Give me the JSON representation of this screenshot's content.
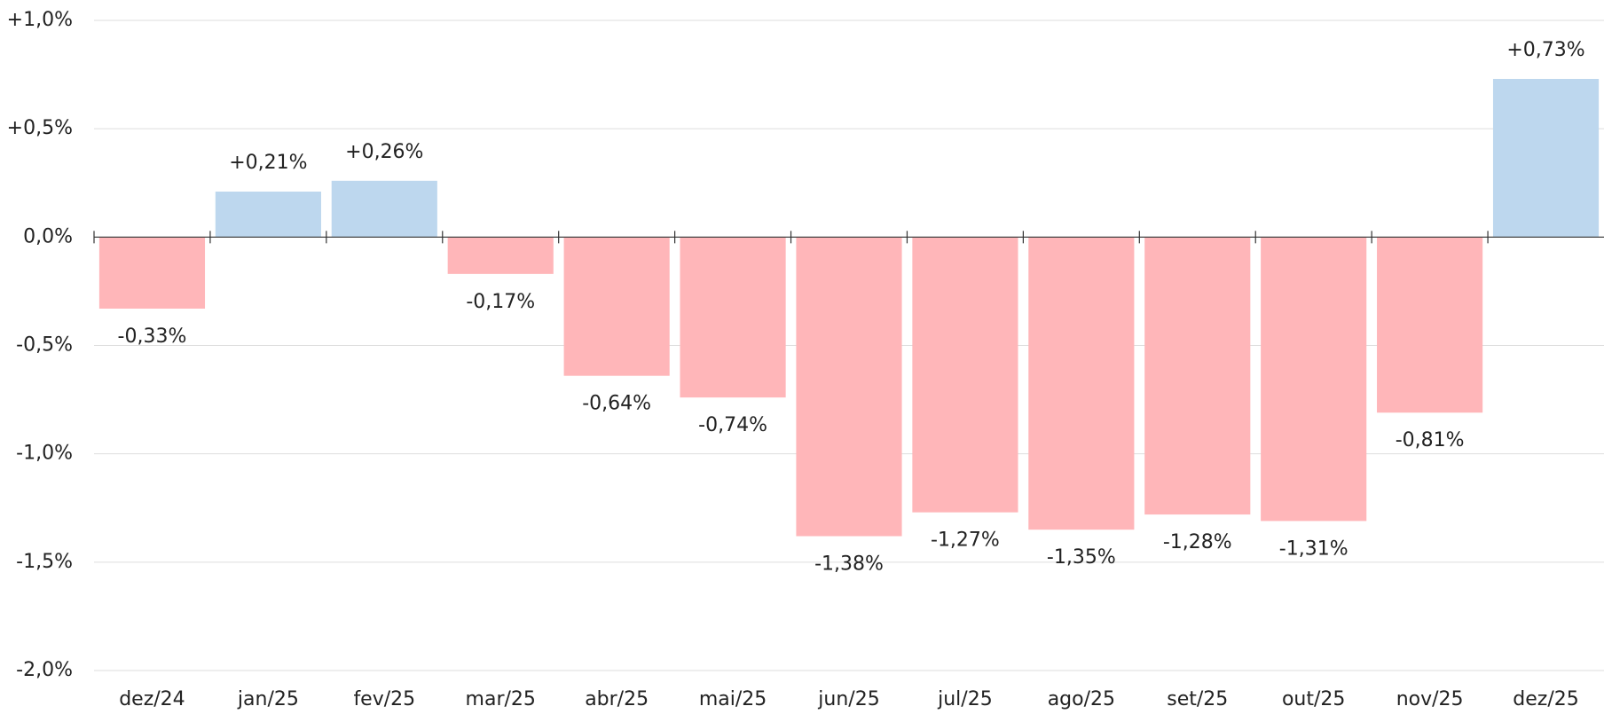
{
  "chart_data": {
    "type": "bar",
    "categories": [
      "dez/24",
      "jan/25",
      "fev/25",
      "mar/25",
      "abr/25",
      "mai/25",
      "jun/25",
      "jul/25",
      "ago/25",
      "set/25",
      "out/25",
      "nov/25",
      "dez/25"
    ],
    "values": [
      -0.33,
      0.21,
      0.26,
      -0.17,
      -0.64,
      -0.74,
      -1.38,
      -1.27,
      -1.35,
      -1.28,
      -1.31,
      -0.81,
      0.73
    ],
    "value_labels": [
      "-0,33%",
      "+0,21%",
      "+0,26%",
      "-0,17%",
      "-0,64%",
      "-0,74%",
      "-1,38%",
      "-1,27%",
      "-1,35%",
      "-1,28%",
      "-1,31%",
      "-0,81%",
      "+0,73%"
    ],
    "positive_color": "#bdd7ee",
    "negative_color": "#ffb6b9",
    "ylim": [
      -2,
      1
    ],
    "yticks": [
      {
        "value": 1,
        "label": "+1,0%"
      },
      {
        "value": 0.5,
        "label": "+0,5%"
      },
      {
        "value": 0,
        "label": "0,0%"
      },
      {
        "value": -0.5,
        "label": "-0,5%"
      },
      {
        "value": -1,
        "label": "-1,0%"
      },
      {
        "value": -1.5,
        "label": "-1,5%"
      },
      {
        "value": -2,
        "label": "-2,0%"
      }
    ],
    "grid": true
  }
}
